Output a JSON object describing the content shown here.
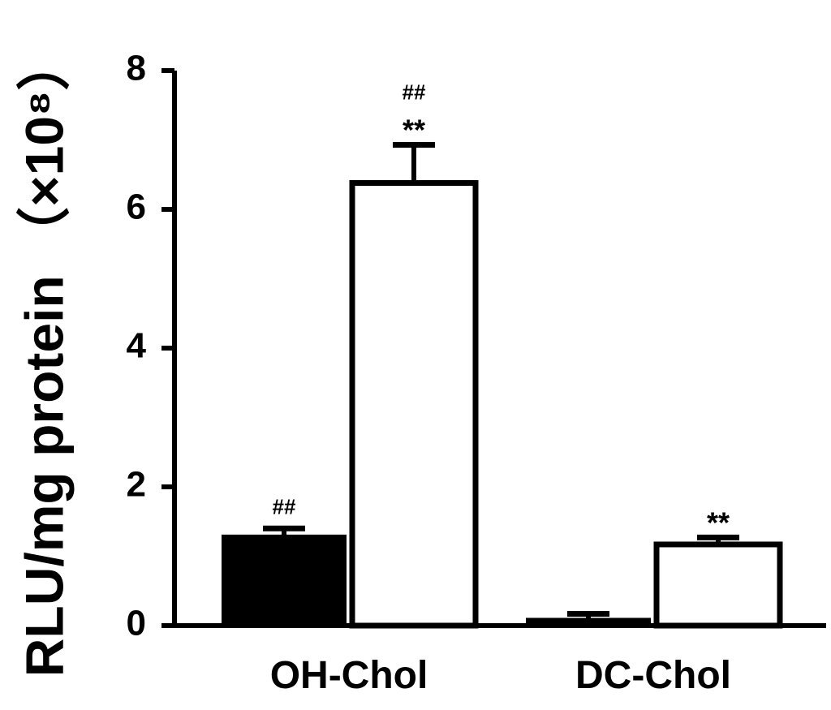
{
  "chart_data": {
    "type": "bar",
    "categories": [
      "OH-Chol",
      "DC-Chol"
    ],
    "series": [
      {
        "fill": "#000000",
        "values": [
          1.3,
          0.1
        ],
        "errors": [
          0.1,
          0.07
        ],
        "annotations": [
          "##",
          ""
        ]
      },
      {
        "fill": "#ffffff",
        "values": [
          6.38,
          1.17
        ],
        "errors": [
          0.55,
          0.1
        ],
        "annotations": [
          "##\n**",
          "**"
        ]
      }
    ],
    "ylabel": "RLU/mg protein （×10⁸）",
    "ylim": [
      0,
      8
    ],
    "yticks": [
      0,
      2,
      4,
      6,
      8
    ],
    "xlabel": "",
    "title": "",
    "grid": false,
    "legend": "none"
  }
}
